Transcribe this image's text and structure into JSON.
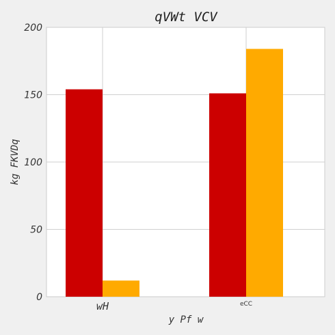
{
  "chart_data": {
    "type": "bar",
    "title": "qVWt VCV",
    "xlabel": "y  Pf w",
    "ylabel": "kg  FKVDq",
    "categories": [
      "wH",
      "eCC"
    ],
    "series": [
      {
        "values": [
          154,
          151
        ],
        "color": "#cc0000"
      },
      {
        "values": [
          12,
          184
        ],
        "color": "#ffaa00"
      }
    ],
    "ylim": [
      0,
      200
    ],
    "yticks": [
      0,
      50,
      100,
      150,
      200
    ],
    "grid": true,
    "legend": "none"
  },
  "colors": {
    "background": "#f0f0f0",
    "plot_area": "#ffffff",
    "grid": "#cfcfcf"
  }
}
